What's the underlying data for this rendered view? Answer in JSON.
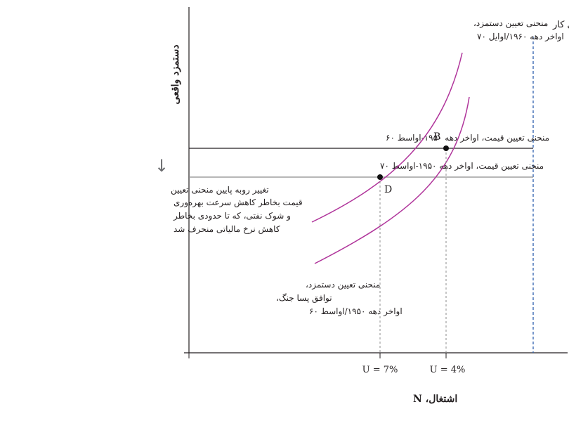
{
  "chart_data": {
    "type": "line",
    "ylabel": "دستمزد واقعی",
    "xlabel": "اشتغال، N",
    "x_ticks": [
      "U = 7%",
      "U = 4%"
    ],
    "curves": [
      {
        "label_lines": [
          "منحنی تعیین دستمزد،",
          "اواخر دهه ۱۹۶۰/اوایل ۷۰"
        ]
      },
      {
        "label_lines": [
          "منحنی تعیین دستمزد،",
          "توافق پسا جنگ،",
          "اواخر دهه ۱۹۵۰/اواسط ۶۰"
        ]
      }
    ],
    "price_lines": [
      {
        "label": "منحنی تعیین قیمت، اواخر دهه ۱۹۵۰-اواسط ۶۰"
      },
      {
        "label": "منحنی تعیین قیمت، اواخر دهه ۱۹۵۰-اواسط ۷۰"
      }
    ],
    "labor_force": {
      "label": "نیروی کار"
    },
    "points": [
      {
        "name": "B",
        "x_tick": "U = 4%"
      },
      {
        "name": "D",
        "x_tick": "U = 7%"
      }
    ],
    "annotation": {
      "arrow": "↓",
      "lines": [
        "تغییر روبه پایین منحنی تعیین",
        "قیمت بخاطر کاهش سرعت بهره‌وری",
        "و شوک نفتی، که تا حدودی بخاطر",
        "کاهش نرخ مالیاتی منحرف شد"
      ]
    },
    "colors": {
      "curve": "#b0359b",
      "labor_force": "#2c5fad",
      "axis": "#231f20",
      "price_line_1": "#231f20",
      "price_line_2": "#8c8c8c",
      "guide": "#8c8c8c"
    }
  }
}
